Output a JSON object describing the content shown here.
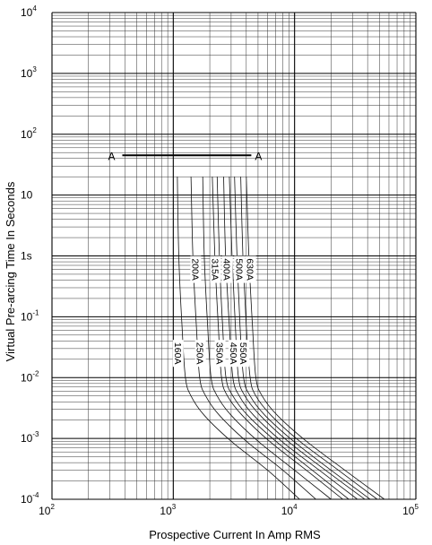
{
  "chart_data": {
    "type": "line",
    "xlabel": "Prospective Current In Amp RMS",
    "ylabel": "Virtual Pre-arcing Time In Seconds",
    "x_scale": "log",
    "y_scale": "log",
    "xlim": [
      100,
      100000
    ],
    "ylim": [
      0.0001,
      10000
    ],
    "x_ticks": [
      {
        "value": 100,
        "base": "10",
        "exp": "2"
      },
      {
        "value": 1000,
        "base": "10",
        "exp": "3"
      },
      {
        "value": 10000,
        "base": "10",
        "exp": "4"
      },
      {
        "value": 100000,
        "base": "10",
        "exp": "5"
      }
    ],
    "y_ticks": [
      {
        "value": 10000,
        "base": "10",
        "exp": "4"
      },
      {
        "value": 1000,
        "base": "10",
        "exp": "3"
      },
      {
        "value": 100,
        "base": "10",
        "exp": "2"
      },
      {
        "value": 10,
        "base": "10",
        "exp": ""
      },
      {
        "value": 1,
        "base": "1s",
        "exp": ""
      },
      {
        "value": 0.1,
        "base": "10",
        "exp": "-1"
      },
      {
        "value": 0.01,
        "base": "10",
        "exp": "-2"
      },
      {
        "value": 0.001,
        "base": "10",
        "exp": "-3"
      },
      {
        "value": 0.0001,
        "base": "10",
        "exp": "-4"
      }
    ],
    "grid": true,
    "marker_line": {
      "label_left": "A",
      "label_right": "A",
      "y": 45,
      "x_start": 380,
      "x_end": 4400
    },
    "series": [
      {
        "name": "160A",
        "label_at": {
          "x": 1060,
          "y": 0.025
        },
        "points": [
          [
            1080,
            20
          ],
          [
            1110,
            1
          ],
          [
            1180,
            0.07
          ],
          [
            1260,
            0.01
          ],
          [
            1400,
            0.005
          ],
          [
            1800,
            0.0024
          ],
          [
            3000,
            0.0009
          ],
          [
            6000,
            0.0003
          ],
          [
            11000,
            0.0001
          ]
        ]
      },
      {
        "name": "200A",
        "label_at": {
          "x": 1480,
          "y": 0.6
        },
        "points": [
          [
            1400,
            20
          ],
          [
            1450,
            1
          ],
          [
            1550,
            0.07
          ],
          [
            1650,
            0.01
          ],
          [
            1850,
            0.005
          ],
          [
            2400,
            0.0024
          ],
          [
            4000,
            0.0009
          ],
          [
            8000,
            0.0003
          ],
          [
            15000,
            0.0001
          ]
        ]
      },
      {
        "name": "250A",
        "label_at": {
          "x": 1620,
          "y": 0.025
        },
        "points": [
          [
            1750,
            20
          ],
          [
            1800,
            1
          ],
          [
            1920,
            0.07
          ],
          [
            2050,
            0.01
          ],
          [
            2300,
            0.005
          ],
          [
            3000,
            0.0024
          ],
          [
            5000,
            0.0009
          ],
          [
            10000,
            0.0003
          ],
          [
            20000,
            0.0001
          ]
        ]
      },
      {
        "name": "315A",
        "label_at": {
          "x": 2150,
          "y": 0.6
        },
        "points": [
          [
            2100,
            20
          ],
          [
            2200,
            1
          ],
          [
            2350,
            0.07
          ],
          [
            2500,
            0.01
          ],
          [
            2800,
            0.005
          ],
          [
            3700,
            0.0024
          ],
          [
            6200,
            0.0009
          ],
          [
            12500,
            0.0003
          ],
          [
            25000,
            0.0001
          ]
        ]
      },
      {
        "name": "350A",
        "label_at": {
          "x": 2350,
          "y": 0.025
        },
        "points": [
          [
            2300,
            20
          ],
          [
            2400,
            1
          ],
          [
            2550,
            0.07
          ],
          [
            2720,
            0.01
          ],
          [
            3100,
            0.005
          ],
          [
            4100,
            0.0024
          ],
          [
            7000,
            0.0009
          ],
          [
            14000,
            0.0003
          ],
          [
            28000,
            0.0001
          ]
        ]
      },
      {
        "name": "400A",
        "label_at": {
          "x": 2700,
          "y": 0.6
        },
        "points": [
          [
            2600,
            20
          ],
          [
            2700,
            1
          ],
          [
            2900,
            0.07
          ],
          [
            3100,
            0.01
          ],
          [
            3500,
            0.005
          ],
          [
            4600,
            0.0024
          ],
          [
            7800,
            0.0009
          ],
          [
            16000,
            0.0003
          ],
          [
            33000,
            0.0001
          ]
        ]
      },
      {
        "name": "450A",
        "label_at": {
          "x": 3050,
          "y": 0.025
        },
        "points": [
          [
            2900,
            20
          ],
          [
            3050,
            1
          ],
          [
            3250,
            0.07
          ],
          [
            3450,
            0.01
          ],
          [
            3900,
            0.005
          ],
          [
            5200,
            0.0024
          ],
          [
            8800,
            0.0009
          ],
          [
            18000,
            0.0003
          ],
          [
            38000,
            0.0001
          ]
        ]
      },
      {
        "name": "500A",
        "label_at": {
          "x": 3400,
          "y": 0.6
        },
        "points": [
          [
            3200,
            20
          ],
          [
            3350,
            1
          ],
          [
            3550,
            0.07
          ],
          [
            3800,
            0.01
          ],
          [
            4300,
            0.005
          ],
          [
            5700,
            0.0024
          ],
          [
            9800,
            0.0009
          ],
          [
            20000,
            0.0003
          ],
          [
            42000,
            0.0001
          ]
        ]
      },
      {
        "name": "550A",
        "label_at": {
          "x": 3700,
          "y": 0.025
        },
        "points": [
          [
            3600,
            20
          ],
          [
            3750,
            1
          ],
          [
            4000,
            0.07
          ],
          [
            4300,
            0.01
          ],
          [
            4800,
            0.005
          ],
          [
            6400,
            0.0024
          ],
          [
            11000,
            0.0009
          ],
          [
            23000,
            0.0003
          ],
          [
            48000,
            0.0001
          ]
        ]
      },
      {
        "name": "630A",
        "label_at": {
          "x": 4200,
          "y": 0.6
        },
        "points": [
          [
            4000,
            20
          ],
          [
            4200,
            1
          ],
          [
            4500,
            0.07
          ],
          [
            4800,
            0.01
          ],
          [
            5400,
            0.005
          ],
          [
            7200,
            0.0024
          ],
          [
            12500,
            0.0009
          ],
          [
            26000,
            0.0003
          ],
          [
            55000,
            0.0001
          ]
        ]
      }
    ]
  }
}
